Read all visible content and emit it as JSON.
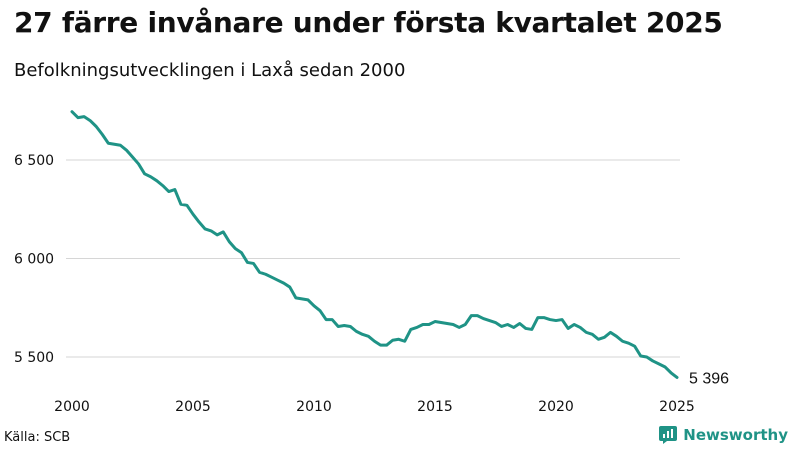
{
  "header": {
    "title": "27 färre invånare under första kvartalet 2025",
    "subtitle": "Befolkningsutvecklingen i Laxå sedan 2000"
  },
  "footer": {
    "source": "Källa: SCB",
    "brand": "Newsworthy"
  },
  "colors": {
    "line": "#1f9386",
    "grid": "#d6d6d6",
    "brand": "#1f9386"
  },
  "chart_data": {
    "type": "line",
    "title": "27 färre invånare under första kvartalet 2025",
    "subtitle": "Befolkningsutvecklingen i Laxå sedan 2000",
    "xlabel": "",
    "ylabel": "",
    "xlim": [
      2000,
      2025
    ],
    "ylim": [
      5400,
      6800
    ],
    "x_ticks": [
      2000,
      2005,
      2010,
      2015,
      2020,
      2025
    ],
    "x_tick_labels": [
      "2000",
      "2005",
      "2010",
      "2015",
      "2020",
      "2025"
    ],
    "y_ticks": [
      5500,
      6000,
      6500
    ],
    "y_tick_labels": [
      "5 500",
      "6 000",
      "6 500"
    ],
    "grid": "horizontal",
    "end_label": "5 396",
    "series": [
      {
        "name": "",
        "x": [
          2000.0,
          2000.25,
          2000.5,
          2000.75,
          2001.0,
          2001.25,
          2001.5,
          2001.75,
          2002.0,
          2002.25,
          2002.5,
          2002.75,
          2003.0,
          2003.25,
          2003.5,
          2003.75,
          2004.0,
          2004.25,
          2004.5,
          2004.75,
          2005.0,
          2005.25,
          2005.5,
          2005.75,
          2006.0,
          2006.25,
          2006.5,
          2006.75,
          2007.0,
          2007.25,
          2007.5,
          2007.75,
          2008.0,
          2008.25,
          2008.5,
          2008.75,
          2009.0,
          2009.25,
          2009.5,
          2009.75,
          2010.0,
          2010.25,
          2010.5,
          2010.75,
          2011.0,
          2011.25,
          2011.5,
          2011.75,
          2012.0,
          2012.25,
          2012.5,
          2012.75,
          2013.0,
          2013.25,
          2013.5,
          2013.75,
          2014.0,
          2014.25,
          2014.5,
          2014.75,
          2015.0,
          2015.25,
          2015.5,
          2015.75,
          2016.0,
          2016.25,
          2016.5,
          2016.75,
          2017.0,
          2017.25,
          2017.5,
          2017.75,
          2018.0,
          2018.25,
          2018.5,
          2018.75,
          2019.0,
          2019.25,
          2019.5,
          2019.75,
          2020.0,
          2020.25,
          2020.5,
          2020.75,
          2021.0,
          2021.25,
          2021.5,
          2021.75,
          2022.0,
          2022.25,
          2022.5,
          2022.75,
          2023.0,
          2023.25,
          2023.5,
          2023.75,
          2024.0,
          2024.25,
          2024.5,
          2024.75,
          2025.0
        ],
        "values": [
          6745,
          6715,
          6720,
          6700,
          6670,
          6630,
          6585,
          6580,
          6575,
          6550,
          6515,
          6480,
          6430,
          6415,
          6395,
          6370,
          6340,
          6350,
          6275,
          6270,
          6225,
          6185,
          6150,
          6140,
          6120,
          6135,
          6085,
          6050,
          6030,
          5980,
          5975,
          5930,
          5920,
          5905,
          5890,
          5875,
          5855,
          5800,
          5795,
          5790,
          5760,
          5735,
          5690,
          5690,
          5655,
          5660,
          5655,
          5630,
          5615,
          5605,
          5580,
          5560,
          5560,
          5585,
          5590,
          5580,
          5640,
          5650,
          5665,
          5665,
          5680,
          5675,
          5670,
          5665,
          5650,
          5665,
          5710,
          5710,
          5695,
          5685,
          5675,
          5655,
          5665,
          5650,
          5670,
          5645,
          5640,
          5700,
          5700,
          5690,
          5685,
          5690,
          5645,
          5665,
          5650,
          5625,
          5615,
          5590,
          5600,
          5625,
          5605,
          5580,
          5570,
          5555,
          5505,
          5500,
          5480,
          5465,
          5450,
          5420,
          5396
        ]
      }
    ]
  }
}
